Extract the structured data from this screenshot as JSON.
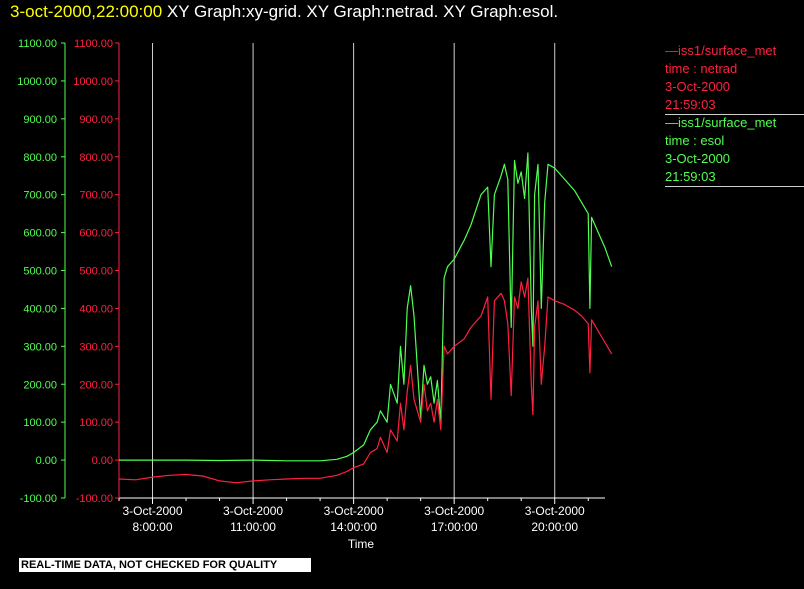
{
  "header": {
    "timestamp": "3-oct-2000,22:00:00",
    "graph_titles": "  XY Graph:xy-grid.  XY Graph:netrad.  XY Graph:esol."
  },
  "legend": [
    {
      "line1": "—iss1/surface_met",
      "line2": "time : netrad",
      "line3": "3-Oct-2000",
      "line4": "21:59:03",
      "color": "#ff2040"
    },
    {
      "line1": "—iss1/surface_met",
      "line2": "time : esol",
      "line3": "3-Oct-2000",
      "line4": "21:59:03",
      "color": "#50ff50"
    }
  ],
  "banner": "REAL-TIME DATA, NOT CHECKED FOR QUALITY",
  "colors": {
    "netrad": "#ff2040",
    "esol": "#50ff50",
    "grid": "#cfcfcf",
    "axis": "#ffffff"
  },
  "chart_data": {
    "type": "line",
    "xlabel": "Time",
    "ylabel": "",
    "ylim": [
      -100,
      1100
    ],
    "xlim": [
      7.0,
      21.5
    ],
    "x_unit": "hour of 3-Oct-2000",
    "yticks": [
      -100,
      0,
      100,
      200,
      300,
      400,
      500,
      600,
      700,
      800,
      900,
      1000,
      1100
    ],
    "ytick_labels": [
      "-100.00",
      "0.00",
      "100.00",
      "200.00",
      "300.00",
      "400.00",
      "500.00",
      "600.00",
      "700.00",
      "800.00",
      "900.00",
      "1000.00",
      "1100.00"
    ],
    "xticks": [
      8,
      11,
      14,
      17,
      20
    ],
    "xtick_labels": [
      {
        "date": "3-Oct-2000",
        "time": "8:00:00"
      },
      {
        "date": "3-Oct-2000",
        "time": "11:00:00"
      },
      {
        "date": "3-Oct-2000",
        "time": "14:00:00"
      },
      {
        "date": "3-Oct-2000",
        "time": "17:00:00"
      },
      {
        "date": "3-Oct-2000",
        "time": "20:00:00"
      }
    ],
    "grid": "vertical",
    "legend_position": "right",
    "series": [
      {
        "name": "time : netrad",
        "color": "#ff2040",
        "points": [
          [
            7.0,
            -50
          ],
          [
            7.5,
            -52
          ],
          [
            8.0,
            -45
          ],
          [
            8.5,
            -40
          ],
          [
            9.0,
            -38
          ],
          [
            9.5,
            -42
          ],
          [
            10.0,
            -55
          ],
          [
            10.5,
            -60
          ],
          [
            11.0,
            -55
          ],
          [
            11.5,
            -52
          ],
          [
            12.0,
            -50
          ],
          [
            12.5,
            -48
          ],
          [
            13.0,
            -48
          ],
          [
            13.5,
            -40
          ],
          [
            13.8,
            -30
          ],
          [
            14.0,
            -20
          ],
          [
            14.3,
            -10
          ],
          [
            14.5,
            20
          ],
          [
            14.7,
            30
          ],
          [
            14.8,
            60
          ],
          [
            15.0,
            20
          ],
          [
            15.1,
            80
          ],
          [
            15.3,
            50
          ],
          [
            15.4,
            150
          ],
          [
            15.5,
            80
          ],
          [
            15.6,
            180
          ],
          [
            15.7,
            250
          ],
          [
            15.8,
            160
          ],
          [
            16.0,
            100
          ],
          [
            16.1,
            200
          ],
          [
            16.2,
            130
          ],
          [
            16.3,
            150
          ],
          [
            16.4,
            100
          ],
          [
            16.5,
            160
          ],
          [
            16.6,
            80
          ],
          [
            16.7,
            300
          ],
          [
            16.8,
            280
          ],
          [
            17.0,
            300
          ],
          [
            17.3,
            320
          ],
          [
            17.5,
            350
          ],
          [
            17.8,
            380
          ],
          [
            18.0,
            430
          ],
          [
            18.1,
            160
          ],
          [
            18.2,
            420
          ],
          [
            18.4,
            440
          ],
          [
            18.5,
            420
          ],
          [
            18.6,
            360
          ],
          [
            18.7,
            170
          ],
          [
            18.8,
            430
          ],
          [
            18.9,
            400
          ],
          [
            19.0,
            470
          ],
          [
            19.1,
            430
          ],
          [
            19.2,
            480
          ],
          [
            19.3,
            200
          ],
          [
            19.35,
            120
          ],
          [
            19.4,
            350
          ],
          [
            19.5,
            420
          ],
          [
            19.6,
            200
          ],
          [
            19.7,
            300
          ],
          [
            19.8,
            430
          ],
          [
            20.0,
            420
          ],
          [
            20.3,
            410
          ],
          [
            20.6,
            395
          ],
          [
            20.8,
            380
          ],
          [
            21.0,
            360
          ],
          [
            21.05,
            230
          ],
          [
            21.1,
            370
          ],
          [
            21.3,
            340
          ],
          [
            21.5,
            310
          ],
          [
            21.7,
            280
          ]
        ]
      },
      {
        "name": "time : esol",
        "color": "#50ff50",
        "points": [
          [
            7.0,
            0
          ],
          [
            8.0,
            0
          ],
          [
            9.0,
            0
          ],
          [
            10.0,
            -1
          ],
          [
            11.0,
            0
          ],
          [
            12.0,
            -2
          ],
          [
            13.0,
            -2
          ],
          [
            13.5,
            2
          ],
          [
            13.8,
            10
          ],
          [
            14.0,
            20
          ],
          [
            14.3,
            40
          ],
          [
            14.5,
            80
          ],
          [
            14.7,
            100
          ],
          [
            14.8,
            130
          ],
          [
            15.0,
            100
          ],
          [
            15.1,
            200
          ],
          [
            15.3,
            150
          ],
          [
            15.4,
            300
          ],
          [
            15.5,
            200
          ],
          [
            15.6,
            400
          ],
          [
            15.7,
            460
          ],
          [
            15.8,
            380
          ],
          [
            16.0,
            110
          ],
          [
            16.1,
            250
          ],
          [
            16.2,
            200
          ],
          [
            16.3,
            220
          ],
          [
            16.4,
            150
          ],
          [
            16.5,
            210
          ],
          [
            16.6,
            100
          ],
          [
            16.7,
            480
          ],
          [
            16.8,
            510
          ],
          [
            17.0,
            530
          ],
          [
            17.3,
            580
          ],
          [
            17.5,
            620
          ],
          [
            17.8,
            700
          ],
          [
            18.0,
            720
          ],
          [
            18.1,
            510
          ],
          [
            18.2,
            700
          ],
          [
            18.4,
            750
          ],
          [
            18.5,
            780
          ],
          [
            18.6,
            740
          ],
          [
            18.7,
            350
          ],
          [
            18.8,
            790
          ],
          [
            18.9,
            730
          ],
          [
            19.0,
            760
          ],
          [
            19.1,
            690
          ],
          [
            19.2,
            810
          ],
          [
            19.3,
            400
          ],
          [
            19.35,
            300
          ],
          [
            19.4,
            700
          ],
          [
            19.5,
            780
          ],
          [
            19.6,
            400
          ],
          [
            19.7,
            680
          ],
          [
            19.8,
            780
          ],
          [
            20.0,
            770
          ],
          [
            20.3,
            740
          ],
          [
            20.6,
            710
          ],
          [
            20.8,
            680
          ],
          [
            21.0,
            650
          ],
          [
            21.05,
            400
          ],
          [
            21.1,
            640
          ],
          [
            21.3,
            600
          ],
          [
            21.5,
            560
          ],
          [
            21.7,
            510
          ]
        ]
      }
    ]
  }
}
